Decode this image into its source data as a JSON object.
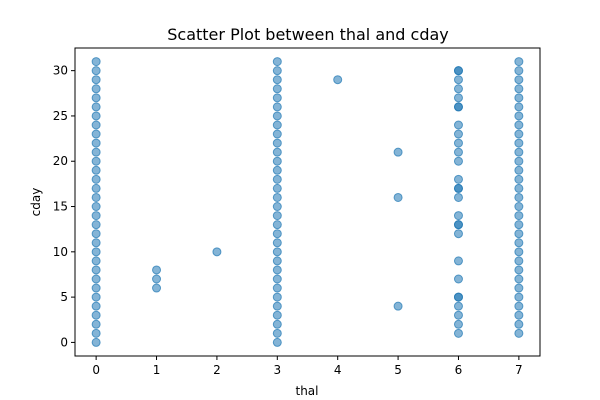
{
  "chart_data": {
    "type": "scatter",
    "title": "Scatter Plot between thal and cday",
    "xlabel": "thal",
    "ylabel": "cday",
    "xlim": [
      -0.35,
      7.35
    ],
    "ylim": [
      -1.5,
      32.5
    ],
    "x_ticks": [
      0,
      1,
      2,
      3,
      4,
      5,
      6,
      7
    ],
    "y_ticks": [
      0,
      5,
      10,
      15,
      20,
      25,
      30
    ],
    "grid": false,
    "legend": "none",
    "color": "#1f77b4",
    "points": {
      "x": [
        0,
        0,
        0,
        0,
        0,
        0,
        0,
        0,
        0,
        0,
        0,
        0,
        0,
        0,
        0,
        0,
        0,
        0,
        0,
        0,
        0,
        0,
        0,
        0,
        0,
        0,
        0,
        0,
        0,
        0,
        0,
        0,
        1,
        1,
        1,
        2,
        3,
        3,
        3,
        3,
        3,
        3,
        3,
        3,
        3,
        3,
        3,
        3,
        3,
        3,
        3,
        3,
        3,
        3,
        3,
        3,
        3,
        3,
        3,
        3,
        3,
        3,
        3,
        3,
        3,
        3,
        3,
        3,
        4,
        5,
        5,
        5,
        6,
        6,
        6,
        6,
        6,
        6,
        6,
        6,
        6,
        6,
        6,
        6,
        6,
        6,
        6,
        6,
        6,
        6,
        6,
        6,
        6,
        6,
        6,
        6,
        6,
        6,
        6,
        6,
        7,
        7,
        7,
        7,
        7,
        7,
        7,
        7,
        7,
        7,
        7,
        7,
        7,
        7,
        7,
        7,
        7,
        7,
        7,
        7,
        7,
        7,
        7,
        7,
        7,
        7,
        7,
        7,
        7,
        7,
        7
      ],
      "y": [
        0,
        1,
        2,
        3,
        4,
        5,
        6,
        7,
        8,
        9,
        10,
        11,
        12,
        13,
        14,
        15,
        16,
        17,
        18,
        19,
        20,
        21,
        22,
        23,
        24,
        25,
        26,
        27,
        28,
        29,
        30,
        31,
        6,
        7,
        8,
        10,
        0,
        1,
        2,
        3,
        4,
        5,
        6,
        7,
        8,
        9,
        10,
        11,
        12,
        13,
        14,
        15,
        16,
        17,
        18,
        19,
        20,
        21,
        22,
        23,
        24,
        25,
        26,
        27,
        28,
        29,
        30,
        31,
        29,
        4,
        16,
        21,
        1,
        2,
        3,
        4,
        5,
        7,
        9,
        12,
        13,
        14,
        16,
        17,
        18,
        20,
        21,
        22,
        23,
        24,
        26,
        27,
        28,
        29,
        30,
        30,
        5,
        13,
        17,
        26,
        1,
        2,
        3,
        4,
        5,
        6,
        7,
        8,
        9,
        10,
        11,
        12,
        13,
        14,
        15,
        16,
        17,
        18,
        19,
        20,
        21,
        22,
        23,
        24,
        25,
        26,
        27,
        28,
        29,
        30,
        31
      ]
    }
  }
}
